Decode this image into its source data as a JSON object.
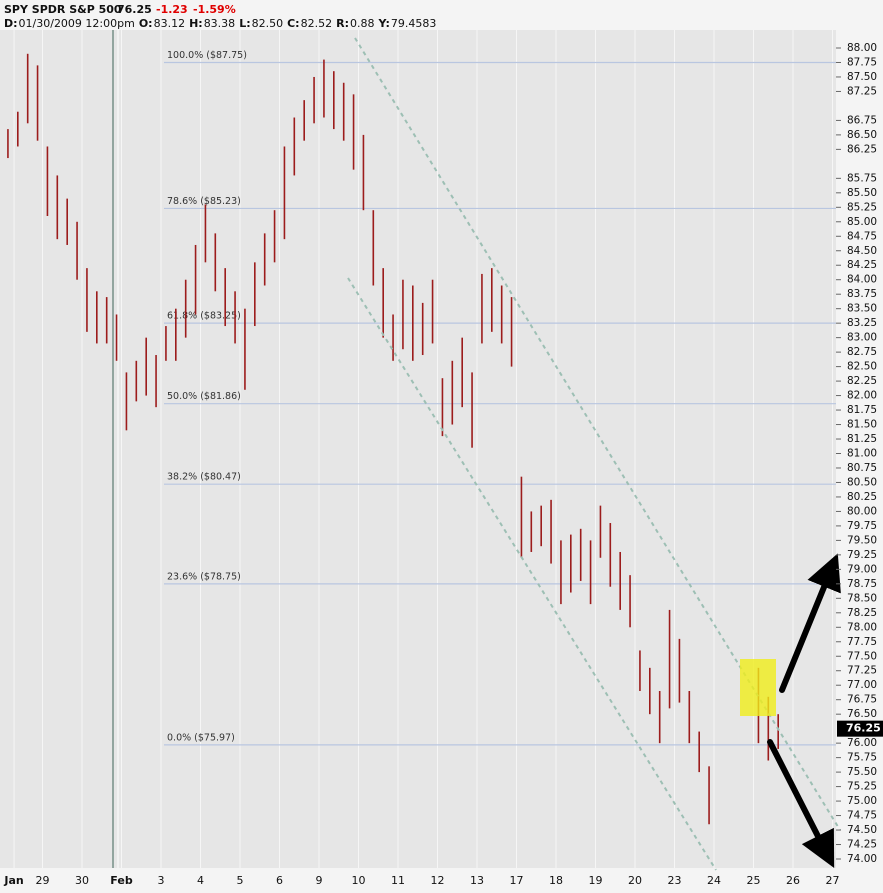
{
  "header": {
    "symbol": "SPY SPDR S&P 500",
    "last": "76.25",
    "change": "-1.23",
    "change_pct": "-1.59%",
    "fields": [
      {
        "label": "D:",
        "value": "01/30/2009  12:00pm"
      },
      {
        "label": "O:",
        "value": "83.12"
      },
      {
        "label": "H:",
        "value": "83.38"
      },
      {
        "label": "L:",
        "value": "82.50"
      },
      {
        "label": "C:",
        "value": "82.52"
      },
      {
        "label": "R:",
        "value": "0.88"
      },
      {
        "label": "Y:",
        "value": "79.4583"
      }
    ]
  },
  "chart_data": {
    "type": "ohlc",
    "color": "#9c1c1c",
    "grid": true,
    "xlim": [
      0,
      21
    ],
    "ylim": [
      74,
      88
    ],
    "xticks": [
      {
        "value": 0.28,
        "label": "Jan"
      },
      {
        "value": 1,
        "label": "29"
      },
      {
        "value": 2,
        "label": "30"
      },
      {
        "value": 3,
        "label": "Feb"
      },
      {
        "value": 4,
        "label": "3"
      },
      {
        "value": 5,
        "label": "4"
      },
      {
        "value": 6,
        "label": "5"
      },
      {
        "value": 7,
        "label": "6"
      },
      {
        "value": 8,
        "label": "9"
      },
      {
        "value": 9,
        "label": "10"
      },
      {
        "value": 10,
        "label": "11"
      },
      {
        "value": 11,
        "label": "12"
      },
      {
        "value": 12,
        "label": "13"
      },
      {
        "value": 13,
        "label": "17"
      },
      {
        "value": 14,
        "label": "18"
      },
      {
        "value": 15,
        "label": "19"
      },
      {
        "value": 16,
        "label": "20"
      },
      {
        "value": 17,
        "label": "23"
      },
      {
        "value": 18,
        "label": "24"
      },
      {
        "value": 19,
        "label": "25"
      },
      {
        "value": 20,
        "label": "26"
      },
      {
        "value": 21,
        "label": "27"
      }
    ],
    "yticks": [
      {
        "value": 74,
        "label": "74.00"
      },
      {
        "value": 74.25,
        "label": "74.25"
      },
      {
        "value": 74.5,
        "label": "74.50"
      },
      {
        "value": 74.75,
        "label": "74.75"
      },
      {
        "value": 75,
        "label": "75.00"
      },
      {
        "value": 75.25,
        "label": "75.25"
      },
      {
        "value": 75.5,
        "label": "75.50"
      },
      {
        "value": 75.75,
        "label": "75.75"
      },
      {
        "value": 76,
        "label": "76.00"
      },
      {
        "value": 76.5,
        "label": "76.50"
      },
      {
        "value": 76.75,
        "label": "76.75"
      },
      {
        "value": 77,
        "label": "77.00"
      },
      {
        "value": 77.25,
        "label": "77.25"
      },
      {
        "value": 77.5,
        "label": "77.50"
      },
      {
        "value": 77.75,
        "label": "77.75"
      },
      {
        "value": 78,
        "label": "78.00"
      },
      {
        "value": 78.25,
        "label": "78.25"
      },
      {
        "value": 78.5,
        "label": "78.50"
      },
      {
        "value": 78.75,
        "label": "78.75"
      },
      {
        "value": 79,
        "label": "79.00"
      },
      {
        "value": 79.25,
        "label": "79.25"
      },
      {
        "value": 79.5,
        "label": "79.50"
      },
      {
        "value": 79.75,
        "label": "79.75"
      },
      {
        "value": 80,
        "label": "80.00"
      },
      {
        "value": 80.25,
        "label": "80.25"
      },
      {
        "value": 80.5,
        "label": "80.50"
      },
      {
        "value": 80.75,
        "label": "80.75"
      },
      {
        "value": 81,
        "label": "81.00"
      },
      {
        "value": 81.25,
        "label": "81.25"
      },
      {
        "value": 81.5,
        "label": "81.50"
      },
      {
        "value": 81.75,
        "label": "81.75"
      },
      {
        "value": 82,
        "label": "82.00"
      },
      {
        "value": 82.25,
        "label": "82.25"
      },
      {
        "value": 82.5,
        "label": "82.50"
      },
      {
        "value": 82.75,
        "label": "82.75"
      },
      {
        "value": 83,
        "label": "83.00"
      },
      {
        "value": 83.25,
        "label": "83.25"
      },
      {
        "value": 83.5,
        "label": "83.50"
      },
      {
        "value": 83.75,
        "label": "83.75"
      },
      {
        "value": 84,
        "label": "84.00"
      },
      {
        "value": 84.25,
        "label": "84.25"
      },
      {
        "value": 84.5,
        "label": "84.50"
      },
      {
        "value": 84.75,
        "label": "84.75"
      },
      {
        "value": 85,
        "label": "85.00"
      },
      {
        "value": 85.25,
        "label": "85.25"
      },
      {
        "value": 85.5,
        "label": "85.50"
      },
      {
        "value": 85.75,
        "label": "85.75"
      },
      {
        "value": 86.25,
        "label": "86.25"
      },
      {
        "value": 86.5,
        "label": "86.50"
      },
      {
        "value": 86.75,
        "label": "86.75"
      },
      {
        "value": 87.25,
        "label": "87.25"
      },
      {
        "value": 87.5,
        "label": "87.50"
      },
      {
        "value": 87.75,
        "label": "87.75"
      },
      {
        "value": 88,
        "label": "88.00"
      }
    ],
    "last_price": {
      "value": 76.25,
      "label": "76.25"
    },
    "fib_levels": [
      {
        "value": 87.75,
        "label": "100.0%  ($87.75)"
      },
      {
        "value": 85.23,
        "label": "78.6%  ($85.23)"
      },
      {
        "value": 83.25,
        "label": "61.8%  ($83.25)"
      },
      {
        "value": 81.86,
        "label": "50.0%  ($81.86)"
      },
      {
        "value": 80.47,
        "label": "38.2%  ($80.47)"
      },
      {
        "value": 78.75,
        "label": "23.6%  ($78.75)"
      },
      {
        "value": 75.97,
        "label": "0.0%  ($75.97)"
      }
    ],
    "x": [
      0.125,
      0.375,
      0.625,
      0.875,
      1.125,
      1.375,
      1.625,
      1.875,
      2.125,
      2.375,
      2.625,
      2.875,
      3.125,
      3.375,
      3.625,
      3.875,
      4.125,
      4.375,
      4.625,
      4.875,
      5.125,
      5.375,
      5.625,
      5.875,
      6.125,
      6.375,
      6.625,
      6.875,
      7.125,
      7.375,
      7.625,
      7.875,
      8.125,
      8.375,
      8.625,
      8.875,
      9.125,
      9.375,
      9.625,
      9.875,
      10.125,
      10.375,
      10.625,
      10.875,
      11.125,
      11.375,
      11.625,
      11.875,
      12.125,
      12.375,
      12.625,
      12.875,
      13.125,
      13.375,
      13.625,
      13.875,
      14.125,
      14.375,
      14.625,
      14.875,
      15.125,
      15.375,
      15.625,
      15.875,
      16.125,
      16.375,
      16.625,
      16.875,
      17.125,
      17.375,
      17.625,
      17.875,
      19.125,
      19.375,
      19.625
    ],
    "high": [
      86.6,
      86.9,
      87.9,
      87.7,
      86.3,
      85.8,
      85.4,
      85.0,
      84.2,
      83.8,
      83.7,
      83.4,
      82.4,
      82.6,
      83.0,
      82.7,
      83.2,
      83.5,
      84.0,
      84.6,
      85.3,
      84.8,
      84.2,
      83.8,
      83.5,
      84.3,
      84.8,
      85.2,
      86.3,
      86.8,
      87.1,
      87.5,
      87.8,
      87.6,
      87.4,
      87.2,
      86.5,
      85.2,
      84.2,
      83.4,
      84.0,
      83.9,
      83.6,
      84.0,
      82.3,
      82.6,
      83.0,
      82.4,
      84.1,
      84.2,
      83.9,
      83.7,
      80.6,
      80.0,
      80.1,
      80.2,
      79.5,
      79.6,
      79.7,
      79.5,
      80.1,
      79.8,
      79.3,
      78.9,
      77.6,
      77.3,
      76.9,
      78.3,
      77.8,
      76.9,
      76.2,
      75.6,
      77.3,
      76.8,
      76.5
    ],
    "low": [
      86.1,
      86.3,
      86.7,
      86.4,
      85.1,
      84.7,
      84.6,
      84.0,
      83.1,
      82.9,
      82.9,
      82.6,
      81.4,
      81.9,
      82.0,
      81.8,
      82.6,
      82.6,
      83.0,
      83.4,
      84.3,
      83.8,
      83.2,
      82.9,
      82.1,
      83.2,
      83.9,
      84.3,
      84.7,
      85.8,
      86.4,
      86.7,
      86.8,
      86.6,
      86.4,
      85.9,
      85.2,
      83.9,
      83.0,
      82.6,
      82.8,
      82.6,
      82.7,
      82.9,
      81.3,
      81.5,
      81.8,
      81.1,
      82.9,
      83.1,
      82.9,
      82.5,
      79.2,
      79.3,
      79.4,
      79.1,
      78.4,
      78.6,
      78.8,
      78.4,
      79.2,
      78.7,
      78.3,
      78.0,
      76.9,
      76.5,
      76.0,
      76.6,
      76.7,
      76.0,
      75.5,
      74.6,
      76.0,
      75.7,
      75.9
    ]
  }
}
